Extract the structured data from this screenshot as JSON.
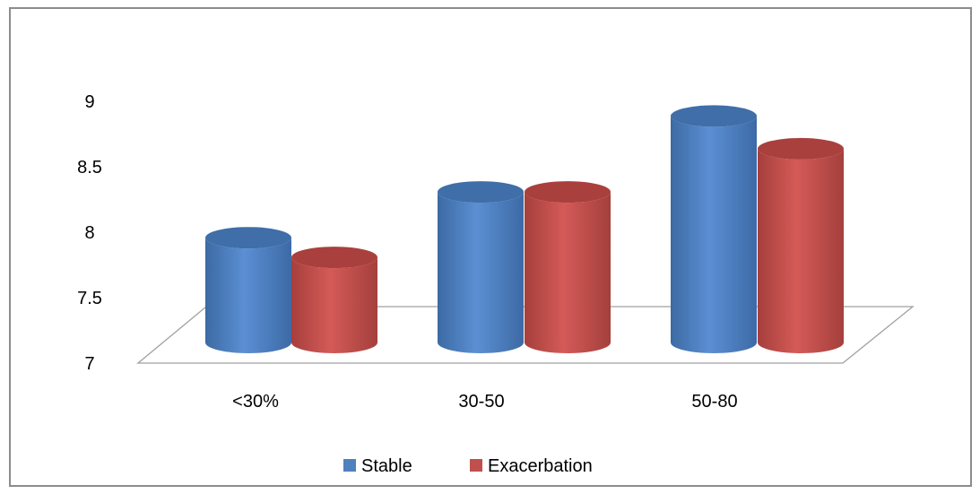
{
  "chart_data": {
    "type": "bar",
    "title": "",
    "xlabel": "",
    "ylabel": "",
    "categories": [
      "<30%",
      "30-50",
      "50-80"
    ],
    "series": [
      {
        "name": "Stable",
        "values": [
          7.8,
          8.15,
          8.73
        ],
        "color": "#4F81BD"
      },
      {
        "name": "Exacerbation",
        "values": [
          7.65,
          8.15,
          8.48
        ],
        "color": "#C0504D"
      }
    ],
    "ylim": [
      7,
      9
    ],
    "yticks": [
      "7",
      "7.5",
      "8",
      "8.5",
      "9"
    ],
    "grid": false,
    "legend": "bottom",
    "style": "3d-cylinder"
  }
}
